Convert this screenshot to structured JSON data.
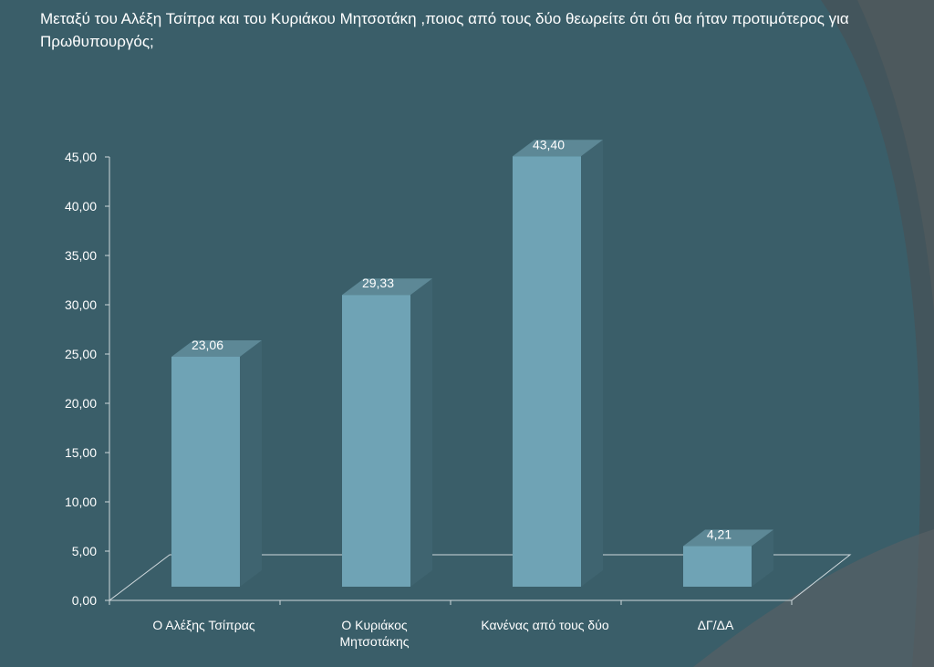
{
  "title": "Μεταξύ του Αλέξη Τσίπρα και του Κυριάκου Μητσοτάκη ,ποιος από τους δύο θεωρείτε ότι ότι θα ήταν προτιμότερος για Πρωθυπουργός;",
  "colors": {
    "background": "#3a5e69",
    "bar_front": "#6fa3b5",
    "bar_side": "#3f6470",
    "bar_top": "#5d8896",
    "axis": "#cfd8dc",
    "text": "#ffffff"
  },
  "chart_data": {
    "type": "bar",
    "style": "3d-column",
    "categories": [
      "Ο Αλέξης Τσίπρας",
      "Ο Κυριάκος Μητσοτάκης",
      "Κανένας από τους δύο",
      "ΔΓ/ΔΑ"
    ],
    "category_lines": [
      [
        "Ο Αλέξης Τσίπρας"
      ],
      [
        "Ο Κυριάκος",
        "Μητσοτάκης"
      ],
      [
        "Κανένας από τους δύο"
      ],
      [
        "ΔΓ/ΔΑ"
      ]
    ],
    "values": [
      23.06,
      29.33,
      43.4,
      4.21
    ],
    "data_labels": [
      "23,06",
      "29,33",
      "43,40",
      "4,21"
    ],
    "ylim": [
      0,
      45
    ],
    "yticks": [
      "0,00",
      "5,00",
      "10,00",
      "15,00",
      "20,00",
      "25,00",
      "30,00",
      "35,00",
      "40,00",
      "45,00"
    ],
    "grid": false,
    "legend": "none"
  }
}
